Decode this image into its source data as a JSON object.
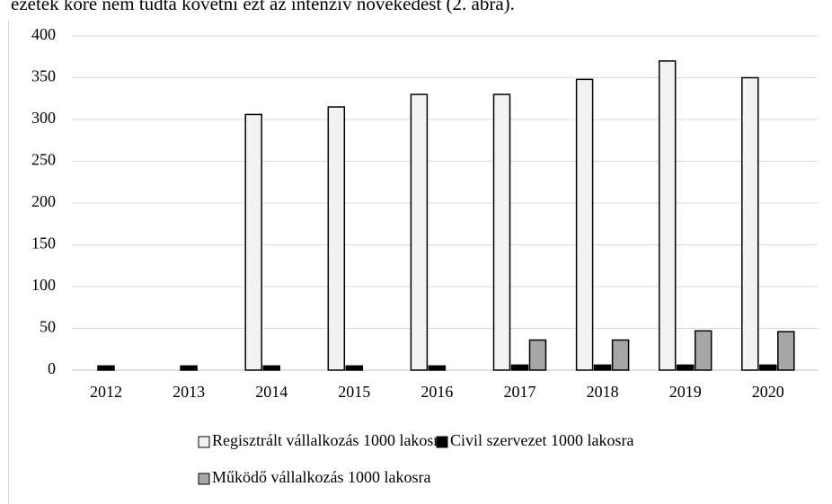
{
  "text_above": "ezetek köre nem tudta követni ezt az intenzív növekedést (2. ábra).",
  "chart_data": {
    "type": "bar",
    "categories": [
      "2012",
      "2013",
      "2014",
      "2015",
      "2016",
      "2017",
      "2018",
      "2019",
      "2020"
    ],
    "series": [
      {
        "name": "Regisztrált vállalkozás 1000 lakosra",
        "color": "#f2f2f2",
        "values": [
          null,
          null,
          306,
          315,
          330,
          330,
          348,
          370,
          350
        ]
      },
      {
        "name": "Civil szervezet 1000 lakosra",
        "color": "#000000",
        "values": [
          5,
          5,
          5,
          5,
          5,
          6,
          6,
          6,
          6
        ]
      },
      {
        "name": "Működő vállalkozás 1000 lakosra",
        "color": "#a6a6a6",
        "values": [
          null,
          null,
          null,
          null,
          null,
          36,
          36,
          47,
          46
        ]
      }
    ],
    "ylim": [
      0,
      400
    ],
    "yticks": [
      0,
      50,
      100,
      150,
      200,
      250,
      300,
      350,
      400
    ],
    "grid": true,
    "legend": "bottom"
  }
}
